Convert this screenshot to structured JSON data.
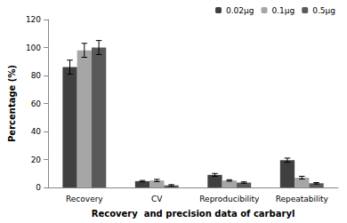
{
  "chart_data": {
    "type": "bar",
    "x_label": "Recovery  and precision data of carbaryl",
    "y_label": "Percentage (%)",
    "categories": [
      "Recovery",
      "CV",
      "Reproducibility",
      "Repeatability"
    ],
    "series": [
      {
        "name": "0.02μg",
        "color": "#404040",
        "values": [
          86,
          4.5,
          9,
          19.5
        ],
        "errors": [
          5,
          0.5,
          1,
          1.5
        ]
      },
      {
        "name": "0.1μg",
        "color": "#a6a6a6",
        "values": [
          98,
          5,
          5,
          7
        ],
        "errors": [
          5,
          0.8,
          0.5,
          1
        ]
      },
      {
        "name": "0.5μg",
        "color": "#595959",
        "values": [
          100,
          1.5,
          3.5,
          3
        ],
        "errors": [
          5,
          0.5,
          0.5,
          0.5
        ]
      }
    ],
    "ylim": [
      0,
      120
    ],
    "yticks": [
      0,
      20,
      40,
      60,
      80,
      100,
      120
    ],
    "grid": false,
    "legend": "top-right"
  }
}
